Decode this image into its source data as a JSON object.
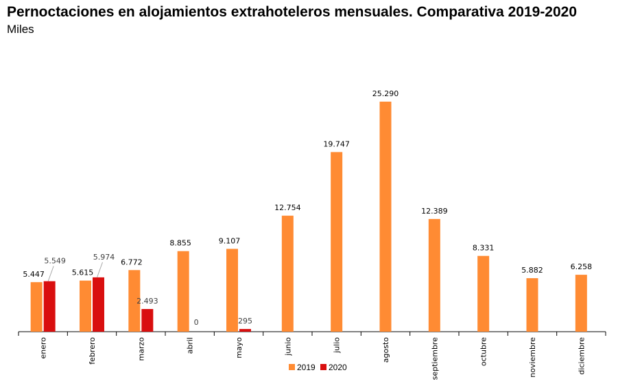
{
  "chart_data": {
    "type": "bar",
    "title": "Pernoctaciones en alojamientos extrahoteleros mensuales. Comparativa 2019-2020",
    "subtitle": "Miles",
    "categories": [
      "enero",
      "febrero",
      "marzo",
      "abril",
      "mayo",
      "junio",
      "julio",
      "agosto",
      "septiembre",
      "octubre",
      "noviembre",
      "diciembre"
    ],
    "series": [
      {
        "name": "2019",
        "color": "#ff8b33",
        "values": [
          5447,
          5615,
          6772,
          8855,
          9107,
          12754,
          19747,
          25290,
          12389,
          8331,
          5882,
          6258
        ],
        "labels": [
          "5.447",
          "5.615",
          "6.772",
          "8.855",
          "9.107",
          "12.754",
          "19.747",
          "25.290",
          "12.389",
          "8.331",
          "5.882",
          "6.258"
        ]
      },
      {
        "name": "2020",
        "color": "#d90f0f",
        "values": [
          5549,
          5974,
          2493,
          0,
          295,
          null,
          null,
          null,
          null,
          null,
          null,
          null
        ],
        "labels": [
          "5.549",
          "5.974",
          "2.493",
          "0",
          "295",
          "",
          "",
          "",
          "",
          "",
          "",
          ""
        ]
      }
    ],
    "ylim": [
      0,
      26000
    ],
    "grid": false,
    "legend": "bottom"
  }
}
